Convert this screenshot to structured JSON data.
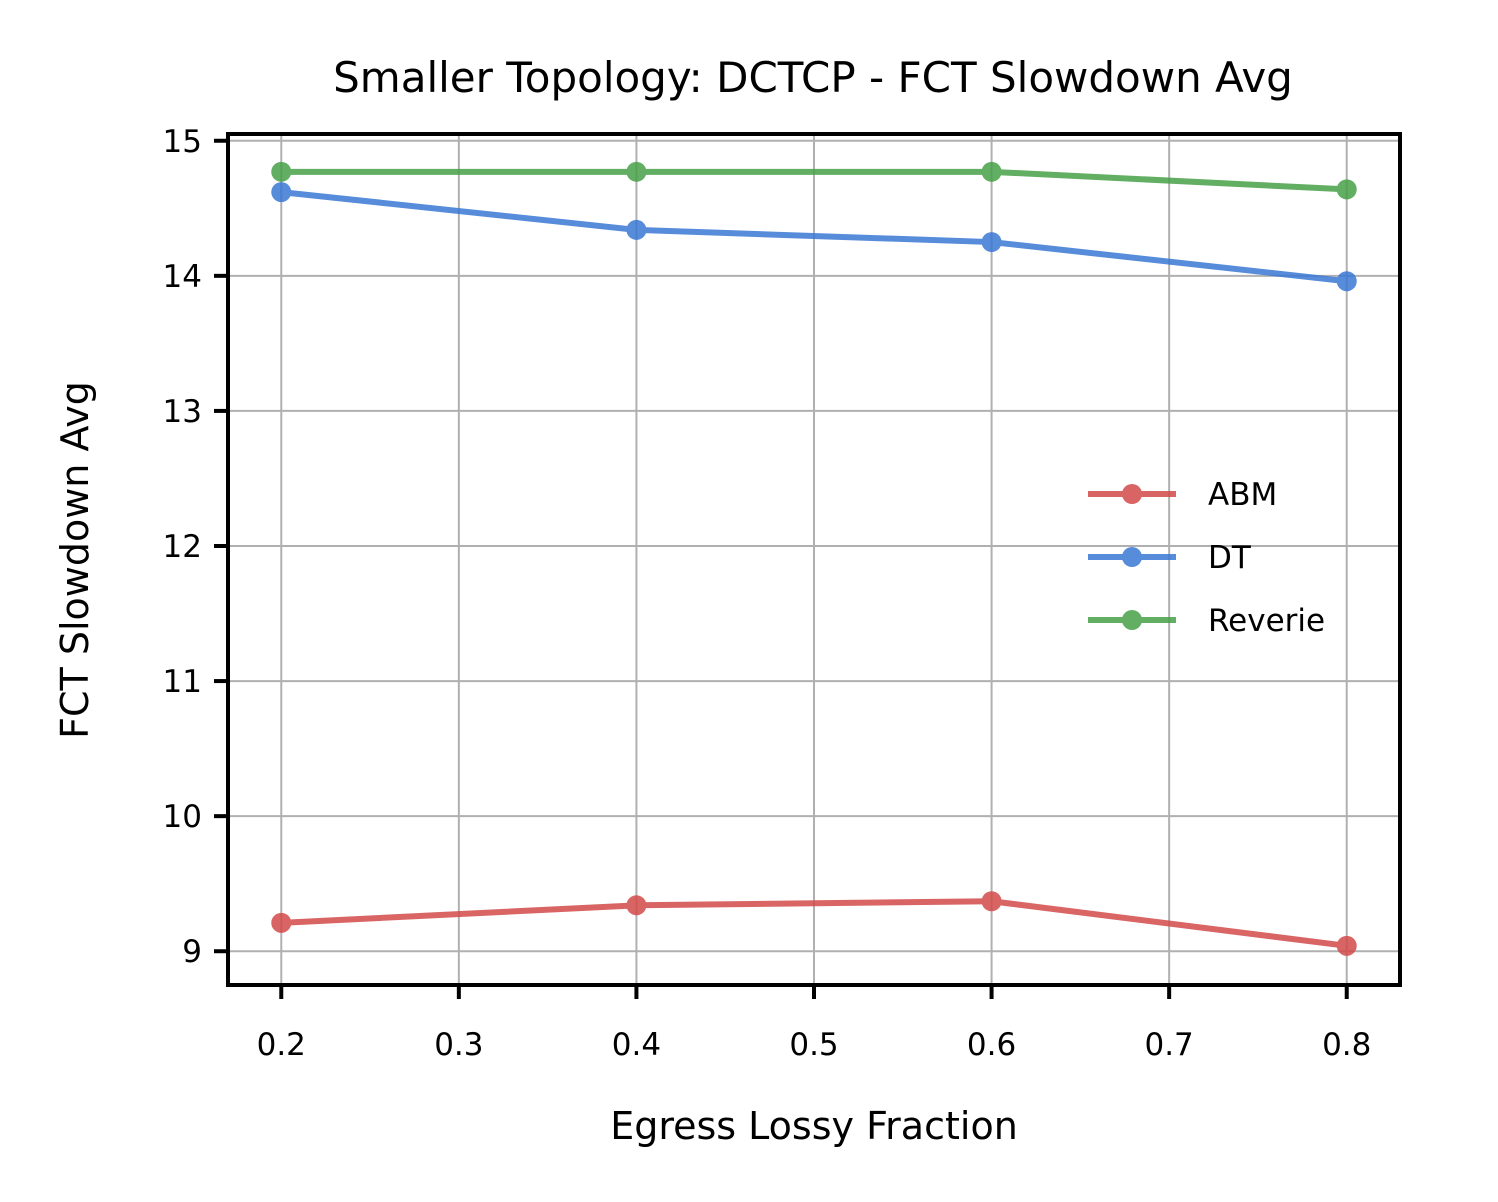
{
  "chart_data": {
    "type": "line",
    "title": "Smaller Topology: DCTCP - FCT Slowdown Avg",
    "xlabel": "Egress Lossy Fraction",
    "ylabel": "FCT Slowdown Avg",
    "xlim": [
      0.17,
      0.83
    ],
    "ylim": [
      8.75,
      15.05
    ],
    "xticks": [
      0.2,
      0.3,
      0.4,
      0.5,
      0.6,
      0.7,
      0.8
    ],
    "xtick_labels": [
      "0.2",
      "0.3",
      "0.4",
      "0.5",
      "0.6",
      "0.7",
      "0.8"
    ],
    "yticks": [
      9,
      10,
      11,
      12,
      13,
      14,
      15
    ],
    "ytick_labels": [
      "9",
      "10",
      "11",
      "12",
      "13",
      "14",
      "15"
    ],
    "grid": true,
    "legend_position": "center-right",
    "x": [
      0.2,
      0.4,
      0.6,
      0.8
    ],
    "series": [
      {
        "name": "ABM",
        "color": "#d34a4a",
        "values": [
          9.21,
          9.34,
          9.37,
          9.04
        ]
      },
      {
        "name": "DT",
        "color": "#3a78d4",
        "values": [
          14.62,
          14.34,
          14.25,
          13.96
        ]
      },
      {
        "name": "Reverie",
        "color": "#47a047",
        "values": [
          14.77,
          14.77,
          14.77,
          14.64
        ]
      }
    ]
  }
}
